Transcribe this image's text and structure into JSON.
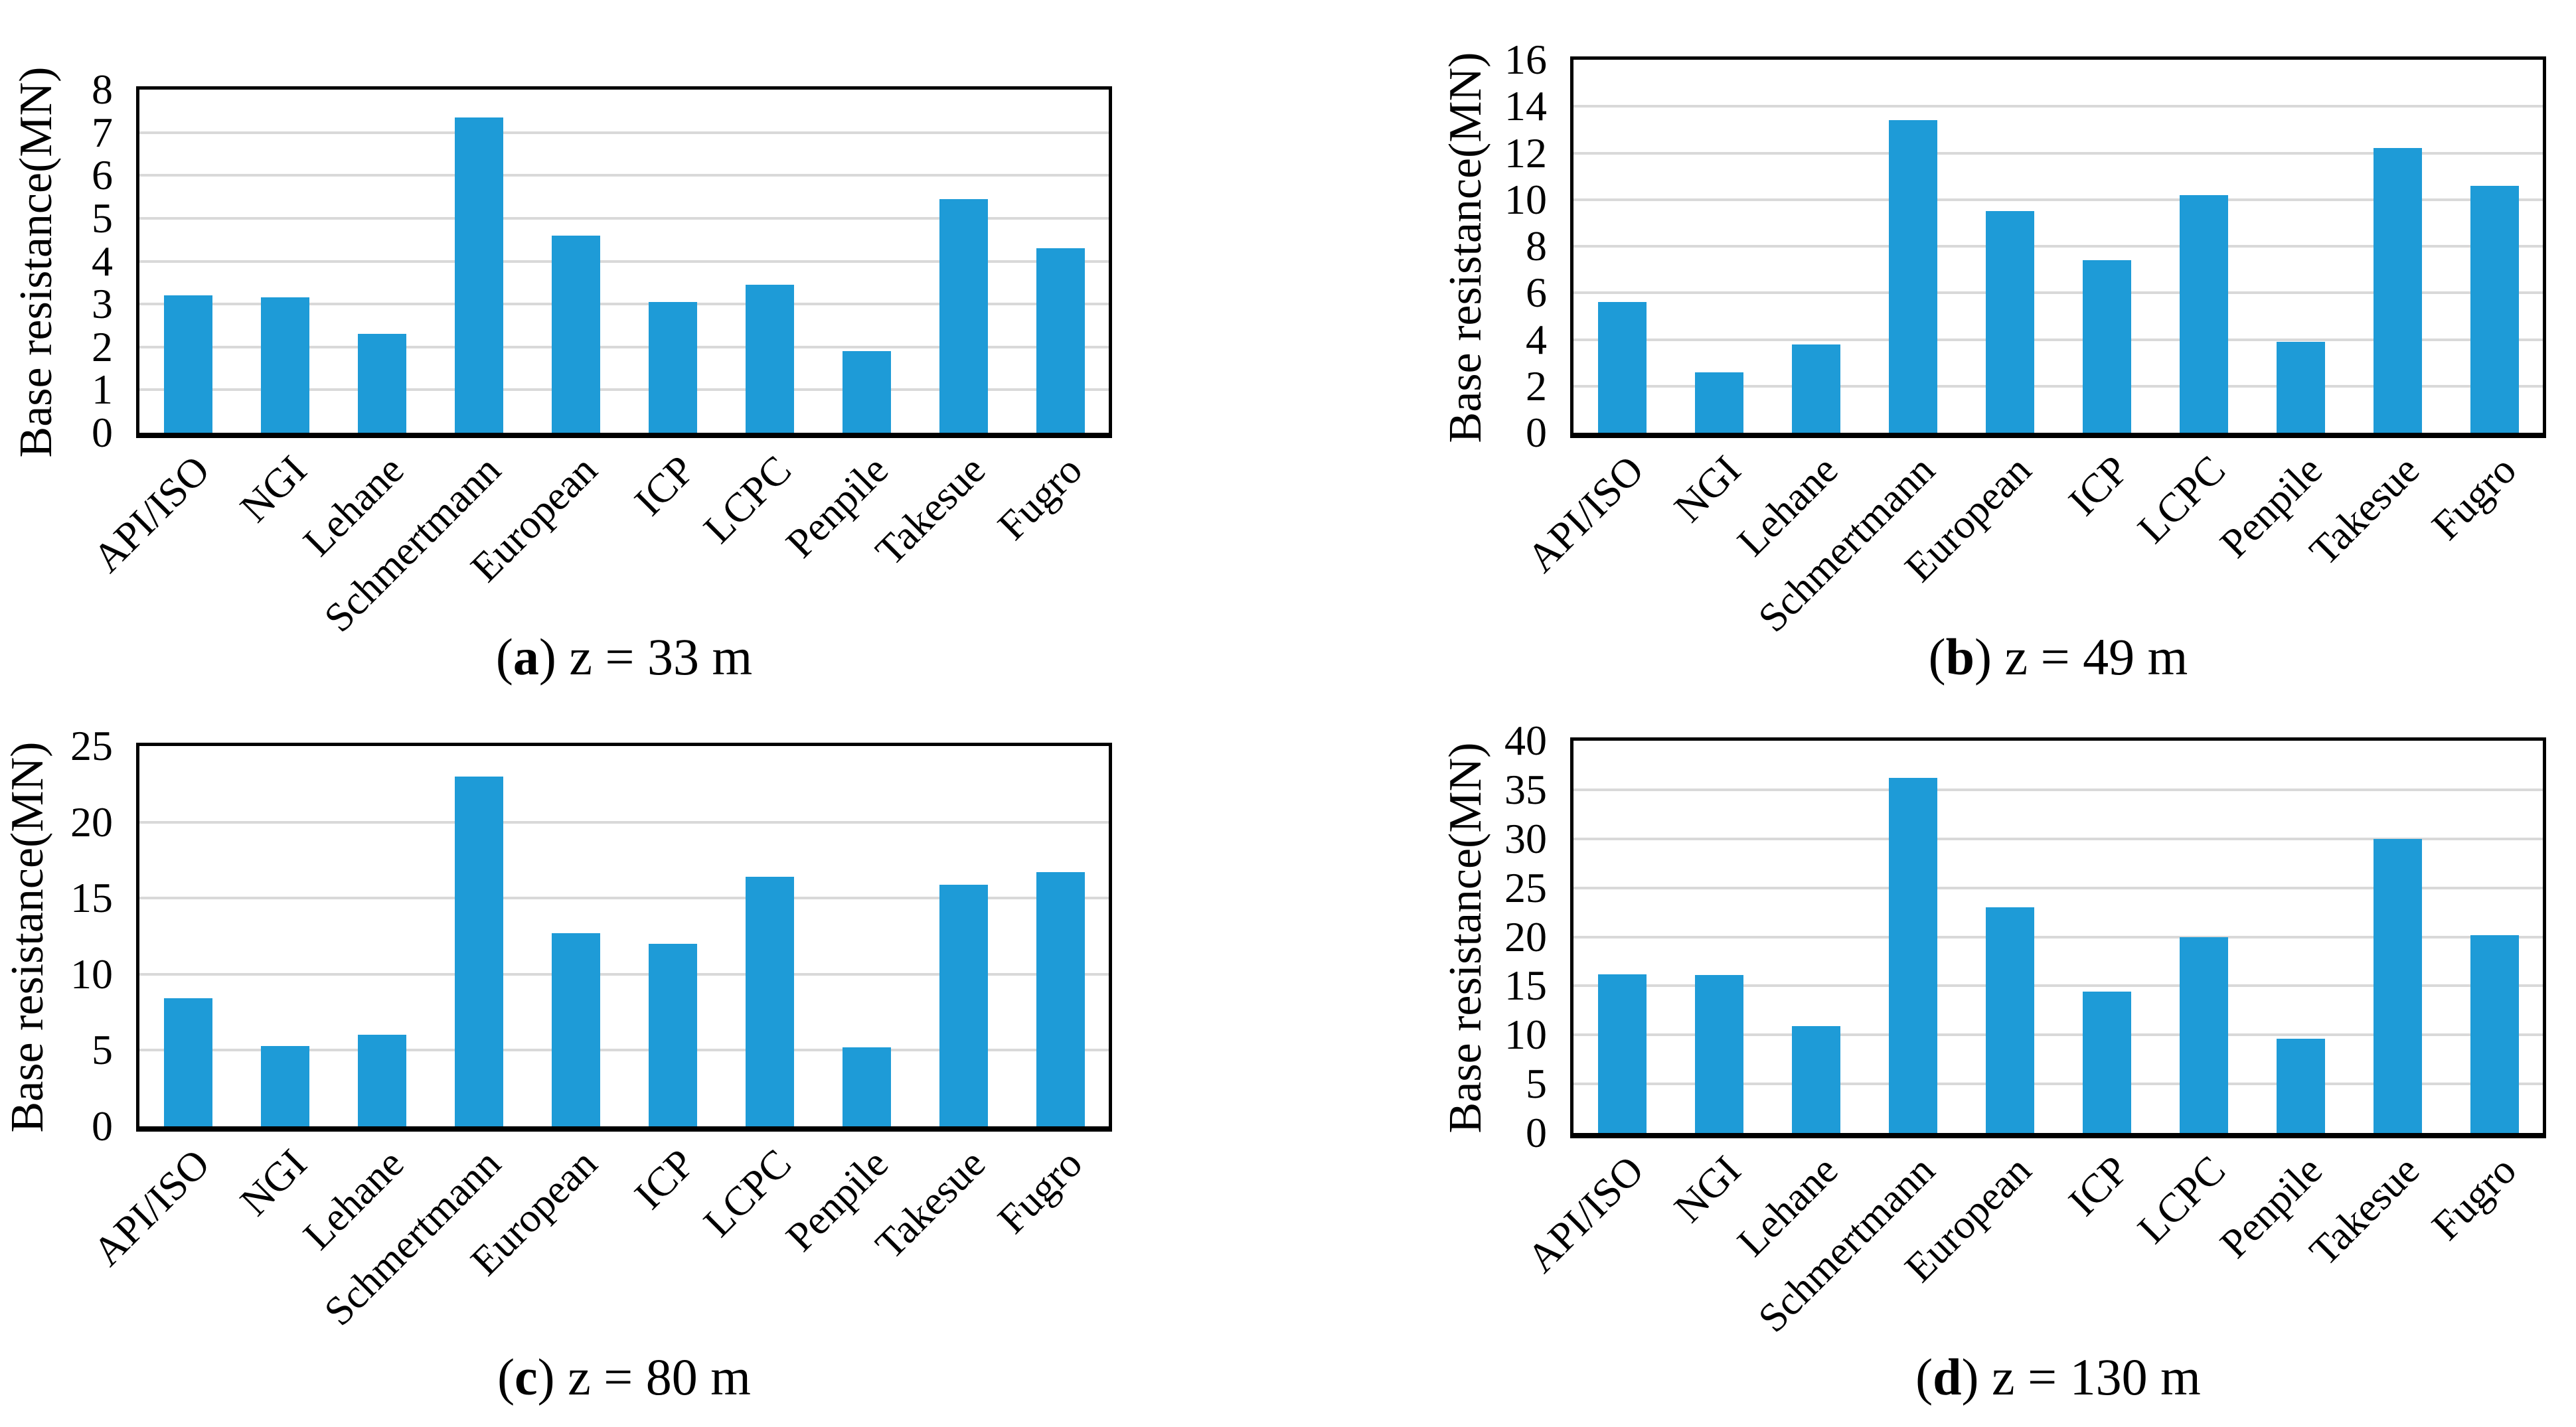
{
  "figure": {
    "ylabel": "Base resistance(MN)",
    "categories": [
      "API/ISO",
      "NGI",
      "Lehane",
      "Schmertmann",
      "European",
      "ICP",
      "LCPC",
      "Penpile",
      "Takesue",
      "Fugro"
    ],
    "bar_color": "#1E9BD7",
    "gridline_color": "#D9D9D9",
    "axis_color": "#000000"
  },
  "chart_data": [
    {
      "type": "bar",
      "title": "(a) z = 33 m",
      "caption_open": "(",
      "caption_letter": "a",
      "caption_close": ")",
      "caption_text": " z = 33 m",
      "ylabel": "Base resistance(MN)",
      "xlabel": "",
      "categories": [
        "API/ISO",
        "NGI",
        "Lehane",
        "Schmertmann",
        "European",
        "ICP",
        "LCPC",
        "Penpile",
        "Takesue",
        "Fugro"
      ],
      "values": [
        3.2,
        3.15,
        2.3,
        7.35,
        4.6,
        3.05,
        3.45,
        1.9,
        5.45,
        4.3
      ],
      "ylim": [
        0,
        8
      ],
      "ytick_step": 1,
      "grid": true,
      "legend_position": "none"
    },
    {
      "type": "bar",
      "title": "(b) z = 49 m",
      "caption_open": "(",
      "caption_letter": "b",
      "caption_close": ")",
      "caption_text": " z = 49 m",
      "ylabel": "Base resistance(MN)",
      "xlabel": "",
      "categories": [
        "API/ISO",
        "NGI",
        "Lehane",
        "Schmertmann",
        "European",
        "ICP",
        "LCPC",
        "Penpile",
        "Takesue",
        "Fugro"
      ],
      "values": [
        5.6,
        2.6,
        3.8,
        13.4,
        9.5,
        7.4,
        10.2,
        3.9,
        12.2,
        10.6
      ],
      "ylim": [
        0,
        16
      ],
      "ytick_step": 2,
      "grid": true,
      "legend_position": "none"
    },
    {
      "type": "bar",
      "title": "(c) z = 80 m",
      "caption_open": "(",
      "caption_letter": "c",
      "caption_close": ")",
      "caption_text": " z = 80 m",
      "ylabel": "Base resistance(MN)",
      "xlabel": "",
      "categories": [
        "API/ISO",
        "NGI",
        "Lehane",
        "Schmertmann",
        "European",
        "ICP",
        "LCPC",
        "Penpile",
        "Takesue",
        "Fugro"
      ],
      "values": [
        8.4,
        5.3,
        6.0,
        23.0,
        12.7,
        12.0,
        16.4,
        5.2,
        15.9,
        16.7
      ],
      "ylim": [
        0,
        25
      ],
      "ytick_step": 5,
      "grid": true,
      "legend_position": "none"
    },
    {
      "type": "bar",
      "title": "(d) z = 130 m",
      "caption_open": "(",
      "caption_letter": "d",
      "caption_close": ")",
      "caption_text": " z = 130 m",
      "ylabel": "Base resistance(MN)",
      "xlabel": "",
      "categories": [
        "API/ISO",
        "NGI",
        "Lehane",
        "Schmertmann",
        "European",
        "ICP",
        "LCPC",
        "Penpile",
        "Takesue",
        "Fugro"
      ],
      "values": [
        16.2,
        16.1,
        10.9,
        36.2,
        23.0,
        14.4,
        20.0,
        9.6,
        30.0,
        20.2
      ],
      "ylim": [
        0,
        40
      ],
      "ytick_step": 5,
      "grid": true,
      "legend_position": "none"
    }
  ]
}
